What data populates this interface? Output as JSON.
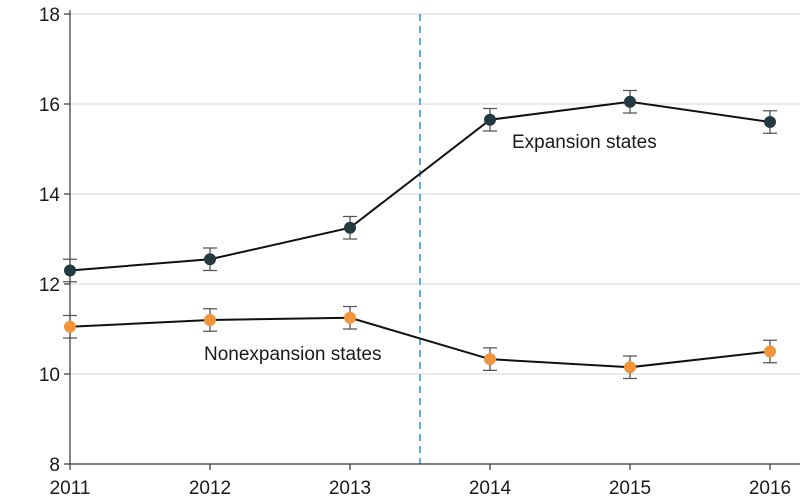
{
  "chart_data": {
    "type": "line",
    "x": [
      2011,
      2012,
      2013,
      2014,
      2015,
      2016
    ],
    "xlim": [
      2011,
      2016
    ],
    "ylim": [
      8,
      18
    ],
    "yticks": [
      8,
      10,
      12,
      14,
      16,
      18
    ],
    "xticks": [
      2011,
      2012,
      2013,
      2014,
      2015,
      2016
    ],
    "grid": true,
    "reference_line_x": 2013.5,
    "reference_line_color": "#4aa8d8",
    "series": [
      {
        "name": "Expansion states",
        "color": "#243a42",
        "values": [
          12.3,
          12.55,
          13.25,
          15.65,
          16.05,
          15.6
        ],
        "ci_low": [
          12.05,
          12.3,
          13.0,
          15.4,
          15.8,
          15.35
        ],
        "ci_high": [
          12.55,
          12.8,
          13.5,
          15.9,
          16.3,
          15.85
        ]
      },
      {
        "name": "Nonexpansion states",
        "color": "#f0953a",
        "values": [
          11.05,
          11.2,
          11.25,
          10.33,
          10.15,
          10.5
        ],
        "ci_low": [
          10.8,
          10.95,
          11.0,
          10.08,
          9.9,
          10.25
        ],
        "ci_high": [
          11.3,
          11.45,
          11.5,
          10.58,
          10.4,
          10.75
        ]
      }
    ]
  }
}
